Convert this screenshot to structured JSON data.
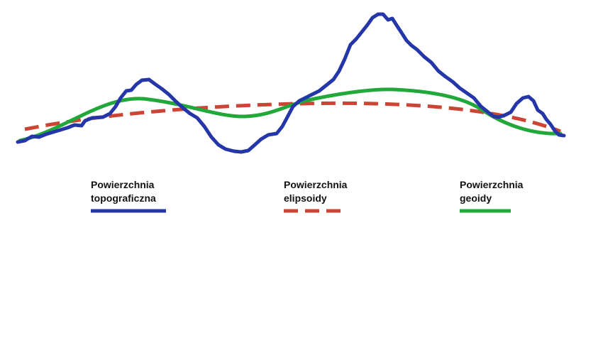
{
  "surfaces": [
    {
      "id": "topo",
      "label": "Powierzchnia\ntopograficzna",
      "color": "#2436a8",
      "style": "solid"
    },
    {
      "id": "elip",
      "label": "Powierzchnia\nelipsoidy",
      "color": "#cc4433",
      "style": "dashed"
    },
    {
      "id": "geoid",
      "label": "Powierzchnia\ngeoidy",
      "color": "#22a83a",
      "style": "solid"
    }
  ]
}
